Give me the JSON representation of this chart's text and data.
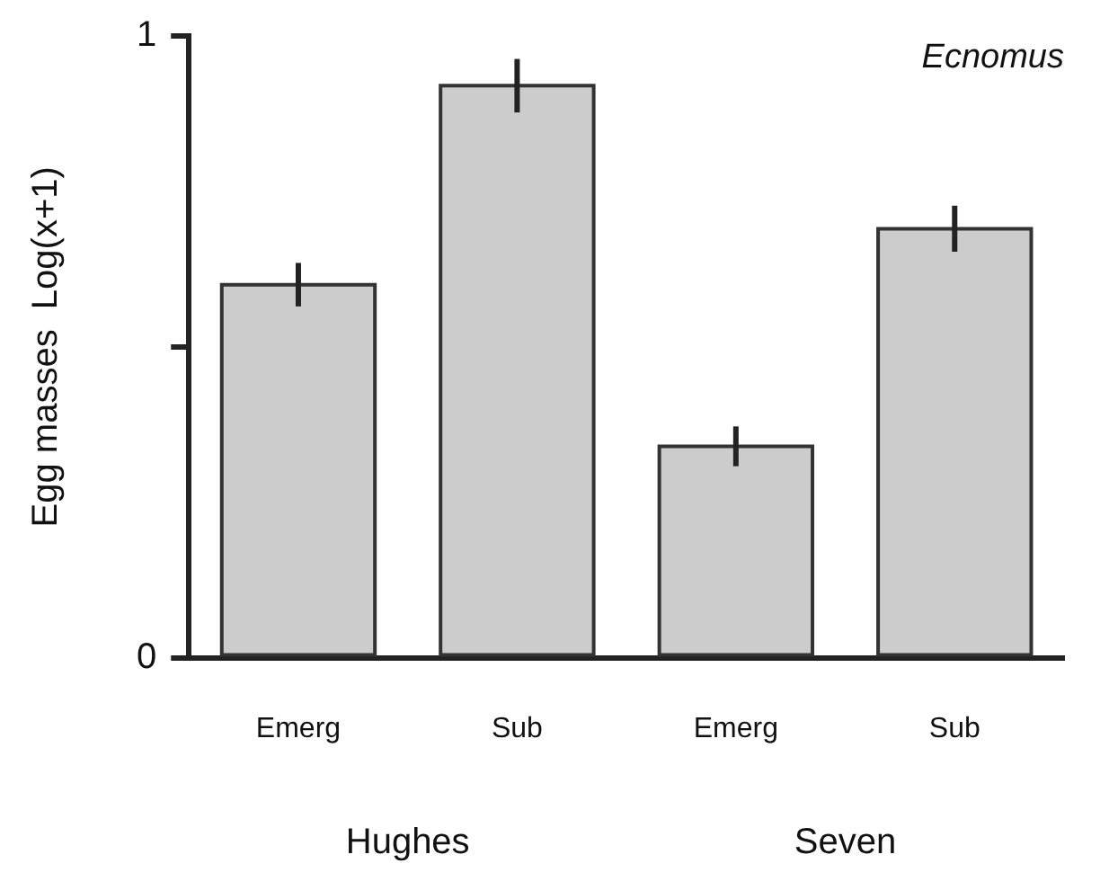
{
  "chart_data": {
    "type": "bar",
    "title": "Ecnomus",
    "ylabel": "Egg masses  Log(x+1)",
    "categories": [
      "Emerg",
      "Sub",
      "Emerg",
      "Sub"
    ],
    "values": [
      0.6,
      0.92,
      0.34,
      0.69
    ],
    "errors": [
      0.035,
      0.043,
      0.032,
      0.037
    ],
    "color": "#cccccc",
    "ylim": [
      0,
      1
    ],
    "yticks": [
      0,
      {
        "value": 0.5,
        "label": null
      },
      1
    ],
    "grid": false,
    "legend": false,
    "annotations": [
      "Hughes",
      "Seven"
    ]
  }
}
